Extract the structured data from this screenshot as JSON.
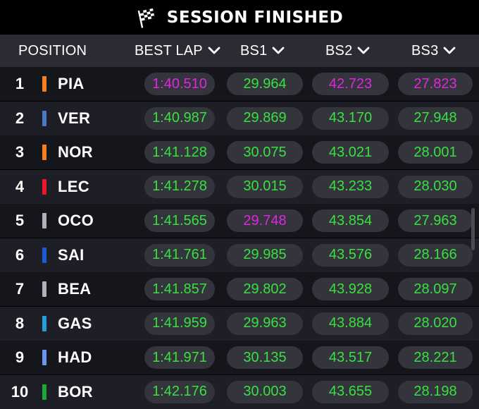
{
  "title": {
    "text": "SESSION FINISHED",
    "icon": "chequered-flag-icon"
  },
  "columns": {
    "position": "POSITION",
    "best_lap": "BEST LAP",
    "bs1": "BS1",
    "bs2": "BS2",
    "bs3": "BS3"
  },
  "colors": {
    "green": "#38e040",
    "purple": "#e026e0",
    "header_bg": "#2b2c33"
  },
  "rows": [
    {
      "pos": "1",
      "driver": "PIA",
      "team_color": "#f58020",
      "best_lap": "1:40.510",
      "bs1": "29.964",
      "bs2": "42.723",
      "bs3": "27.823",
      "best_lap_color": "purple",
      "bs1_color": "green",
      "bs2_color": "purple",
      "bs3_color": "purple"
    },
    {
      "pos": "2",
      "driver": "VER",
      "team_color": "#4a78c8",
      "best_lap": "1:40.987",
      "bs1": "29.869",
      "bs2": "43.170",
      "bs3": "27.948",
      "best_lap_color": "green",
      "bs1_color": "green",
      "bs2_color": "green",
      "bs3_color": "green"
    },
    {
      "pos": "3",
      "driver": "NOR",
      "team_color": "#f58020",
      "best_lap": "1:41.128",
      "bs1": "30.075",
      "bs2": "43.021",
      "bs3": "28.001",
      "best_lap_color": "green",
      "bs1_color": "green",
      "bs2_color": "green",
      "bs3_color": "green"
    },
    {
      "pos": "4",
      "driver": "LEC",
      "team_color": "#e8182a",
      "best_lap": "1:41.278",
      "bs1": "30.015",
      "bs2": "43.233",
      "bs3": "28.030",
      "best_lap_color": "green",
      "bs1_color": "green",
      "bs2_color": "green",
      "bs3_color": "green"
    },
    {
      "pos": "5",
      "driver": "OCO",
      "team_color": "#b0b0b8",
      "best_lap": "1:41.565",
      "bs1": "29.748",
      "bs2": "43.854",
      "bs3": "27.963",
      "best_lap_color": "green",
      "bs1_color": "purple",
      "bs2_color": "green",
      "bs3_color": "green"
    },
    {
      "pos": "6",
      "driver": "SAI",
      "team_color": "#1e5bd0",
      "best_lap": "1:41.761",
      "bs1": "29.985",
      "bs2": "43.576",
      "bs3": "28.166",
      "best_lap_color": "green",
      "bs1_color": "green",
      "bs2_color": "green",
      "bs3_color": "green"
    },
    {
      "pos": "7",
      "driver": "BEA",
      "team_color": "#b0b0b8",
      "best_lap": "1:41.857",
      "bs1": "29.802",
      "bs2": "43.928",
      "bs3": "28.097",
      "best_lap_color": "green",
      "bs1_color": "green",
      "bs2_color": "green",
      "bs3_color": "green"
    },
    {
      "pos": "8",
      "driver": "GAS",
      "team_color": "#2a9ad8",
      "best_lap": "1:41.959",
      "bs1": "29.963",
      "bs2": "43.884",
      "bs3": "28.020",
      "best_lap_color": "green",
      "bs1_color": "green",
      "bs2_color": "green",
      "bs3_color": "green"
    },
    {
      "pos": "9",
      "driver": "HAD",
      "team_color": "#6e96f0",
      "best_lap": "1:41.971",
      "bs1": "30.135",
      "bs2": "43.517",
      "bs3": "28.221",
      "best_lap_color": "green",
      "bs1_color": "green",
      "bs2_color": "green",
      "bs3_color": "green"
    },
    {
      "pos": "10",
      "driver": "BOR",
      "team_color": "#1aa83a",
      "best_lap": "1:42.176",
      "bs1": "30.003",
      "bs2": "43.655",
      "bs3": "28.198",
      "best_lap_color": "green",
      "bs1_color": "green",
      "bs2_color": "green",
      "bs3_color": "green"
    }
  ]
}
